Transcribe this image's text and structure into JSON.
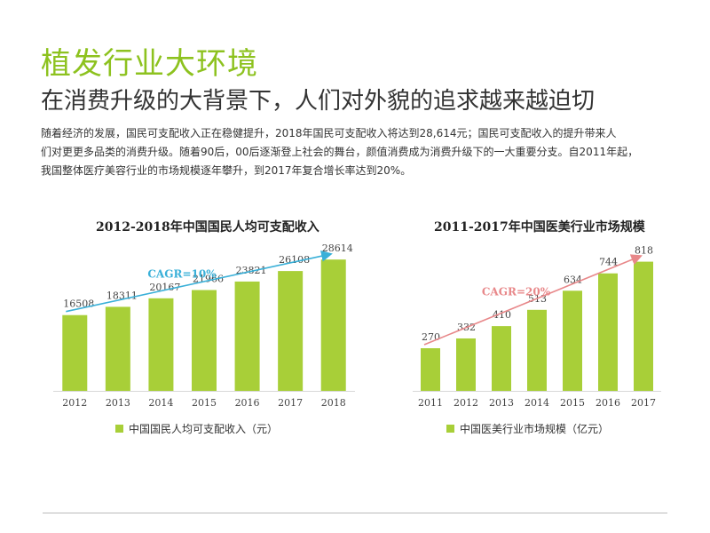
{
  "header": {
    "title": "植发行业大环境",
    "subtitle": "在消费升级的大背景下，人们对外貌的追求越来越迫切"
  },
  "body": {
    "lines": [
      "随着经济的发展，国民可支配收入正在稳健提升，2018年国民可支配收入将达到28,614元；国民可支配收入的提升带来人",
      "们对更更多品类的消费升级。随着90后，00后逐渐登上社会的舞台，颜值消费成为消费升级下的一大重要分支。自2011年起，",
      "我国整体医疗美容行业的市场规模逐年攀升，到2017年复合增长率达到20%。"
    ]
  },
  "colors": {
    "accent": "#8dc21f",
    "bar": "#a8cf38",
    "cagr_left": "#3ab0d8",
    "cagr_right": "#e8888a"
  },
  "chart_data": [
    {
      "type": "bar",
      "title": "2012-2018年中国国民人均可支配收入",
      "categories": [
        "2012",
        "2013",
        "2014",
        "2015",
        "2016",
        "2017",
        "2018"
      ],
      "series": [
        {
          "name": "中国国民人均可支配收入（元）",
          "values": [
            16508,
            18311,
            20167,
            21966,
            23821,
            26108,
            28614
          ]
        }
      ],
      "annotation": "CAGR=10%",
      "ylim": [
        0,
        30000
      ],
      "grid": false,
      "legend": "bottom"
    },
    {
      "type": "bar",
      "title": "2011-2017年中国医美行业市场规模",
      "categories": [
        "2011",
        "2012",
        "2013",
        "2014",
        "2015",
        "2016",
        "2017"
      ],
      "series": [
        {
          "name": "中国医美行业市场规模（亿元）",
          "values": [
            270,
            332,
            410,
            513,
            634,
            744,
            818
          ]
        }
      ],
      "annotation": "CAGR=20%",
      "ylim": [
        0,
        900
      ],
      "grid": false,
      "legend": "bottom"
    }
  ]
}
